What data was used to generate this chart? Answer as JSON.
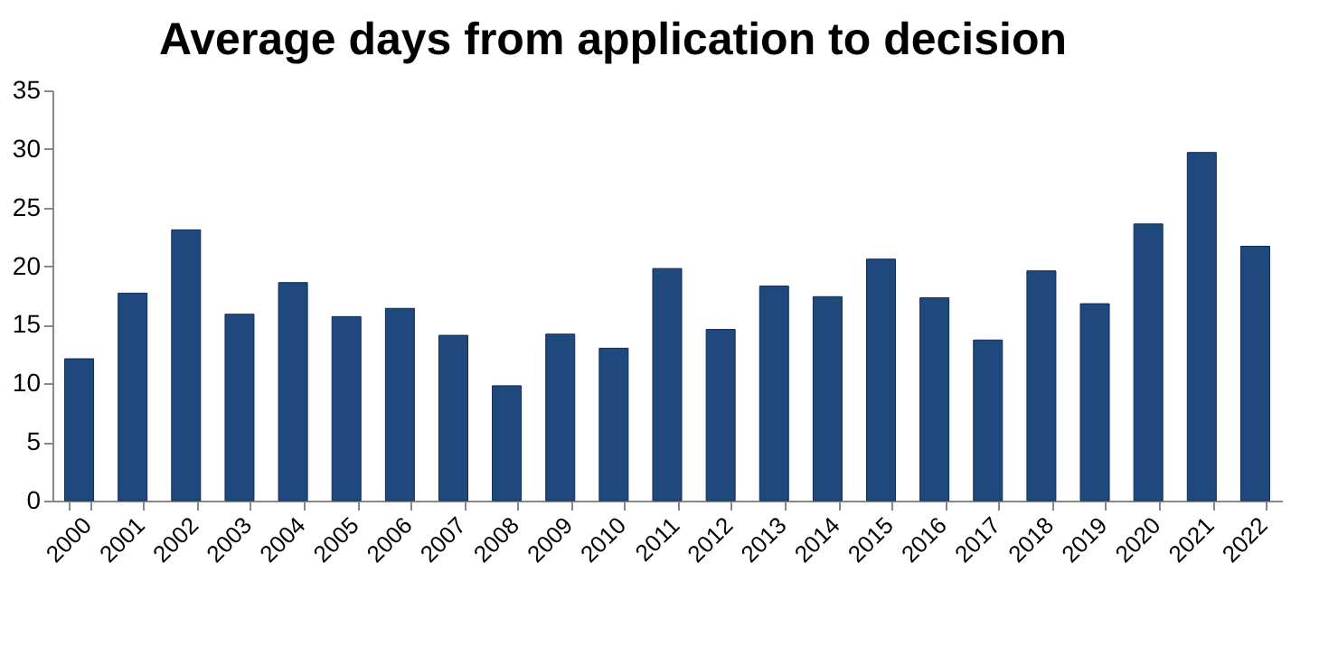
{
  "chart_data": {
    "type": "bar",
    "title": "Average days from application to decision",
    "categories": [
      "2000",
      "2001",
      "2002",
      "2003",
      "2004",
      "2005",
      "2006",
      "2007",
      "2008",
      "2009",
      "2010",
      "2011",
      "2012",
      "2013",
      "2014",
      "2015",
      "2016",
      "2017",
      "2018",
      "2019",
      "2020",
      "2021",
      "2022"
    ],
    "values": [
      12.1,
      17.7,
      23.1,
      15.9,
      18.6,
      15.7,
      16.4,
      14.1,
      9.8,
      14.2,
      13.0,
      19.8,
      14.6,
      18.3,
      17.4,
      20.6,
      17.3,
      13.7,
      19.6,
      16.8,
      23.6,
      29.7,
      21.7
    ],
    "color": "#1f497d",
    "ylim": [
      0,
      35
    ],
    "yticks": [
      0,
      5,
      10,
      15,
      20,
      25,
      30,
      35
    ],
    "grid": false
  }
}
